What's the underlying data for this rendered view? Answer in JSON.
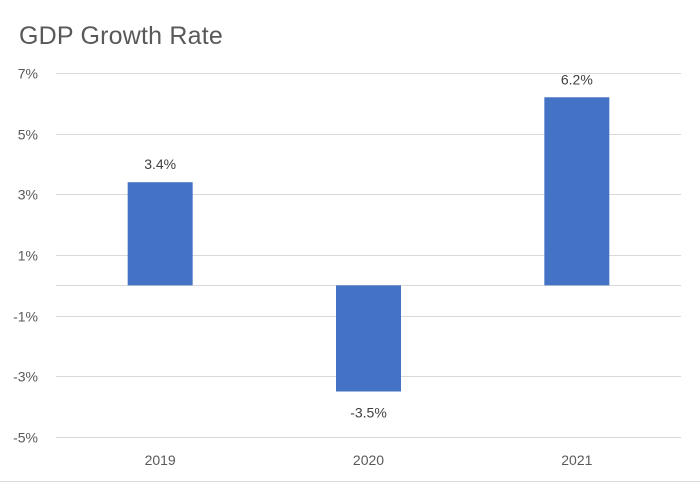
{
  "chart_data": {
    "type": "bar",
    "title": "GDP Growth Rate",
    "categories": [
      "2019",
      "2020",
      "2021"
    ],
    "values": [
      3.4,
      -3.5,
      6.2
    ],
    "data_labels": [
      "3.4%",
      "-3.5%",
      "6.2%"
    ],
    "xlabel": "",
    "ylabel": "",
    "ylim": [
      -5,
      7
    ],
    "yticks": [
      7,
      5,
      3,
      1,
      -1,
      -3,
      -5
    ],
    "ytick_labels": [
      "7%",
      "5%",
      "3%",
      "1%",
      "-1%",
      "-3%",
      "-5%"
    ],
    "grid": true,
    "legend": "none",
    "bar_color": "#4472C4",
    "gridline_color": "#d9d9d9",
    "text_color": "#595959"
  }
}
